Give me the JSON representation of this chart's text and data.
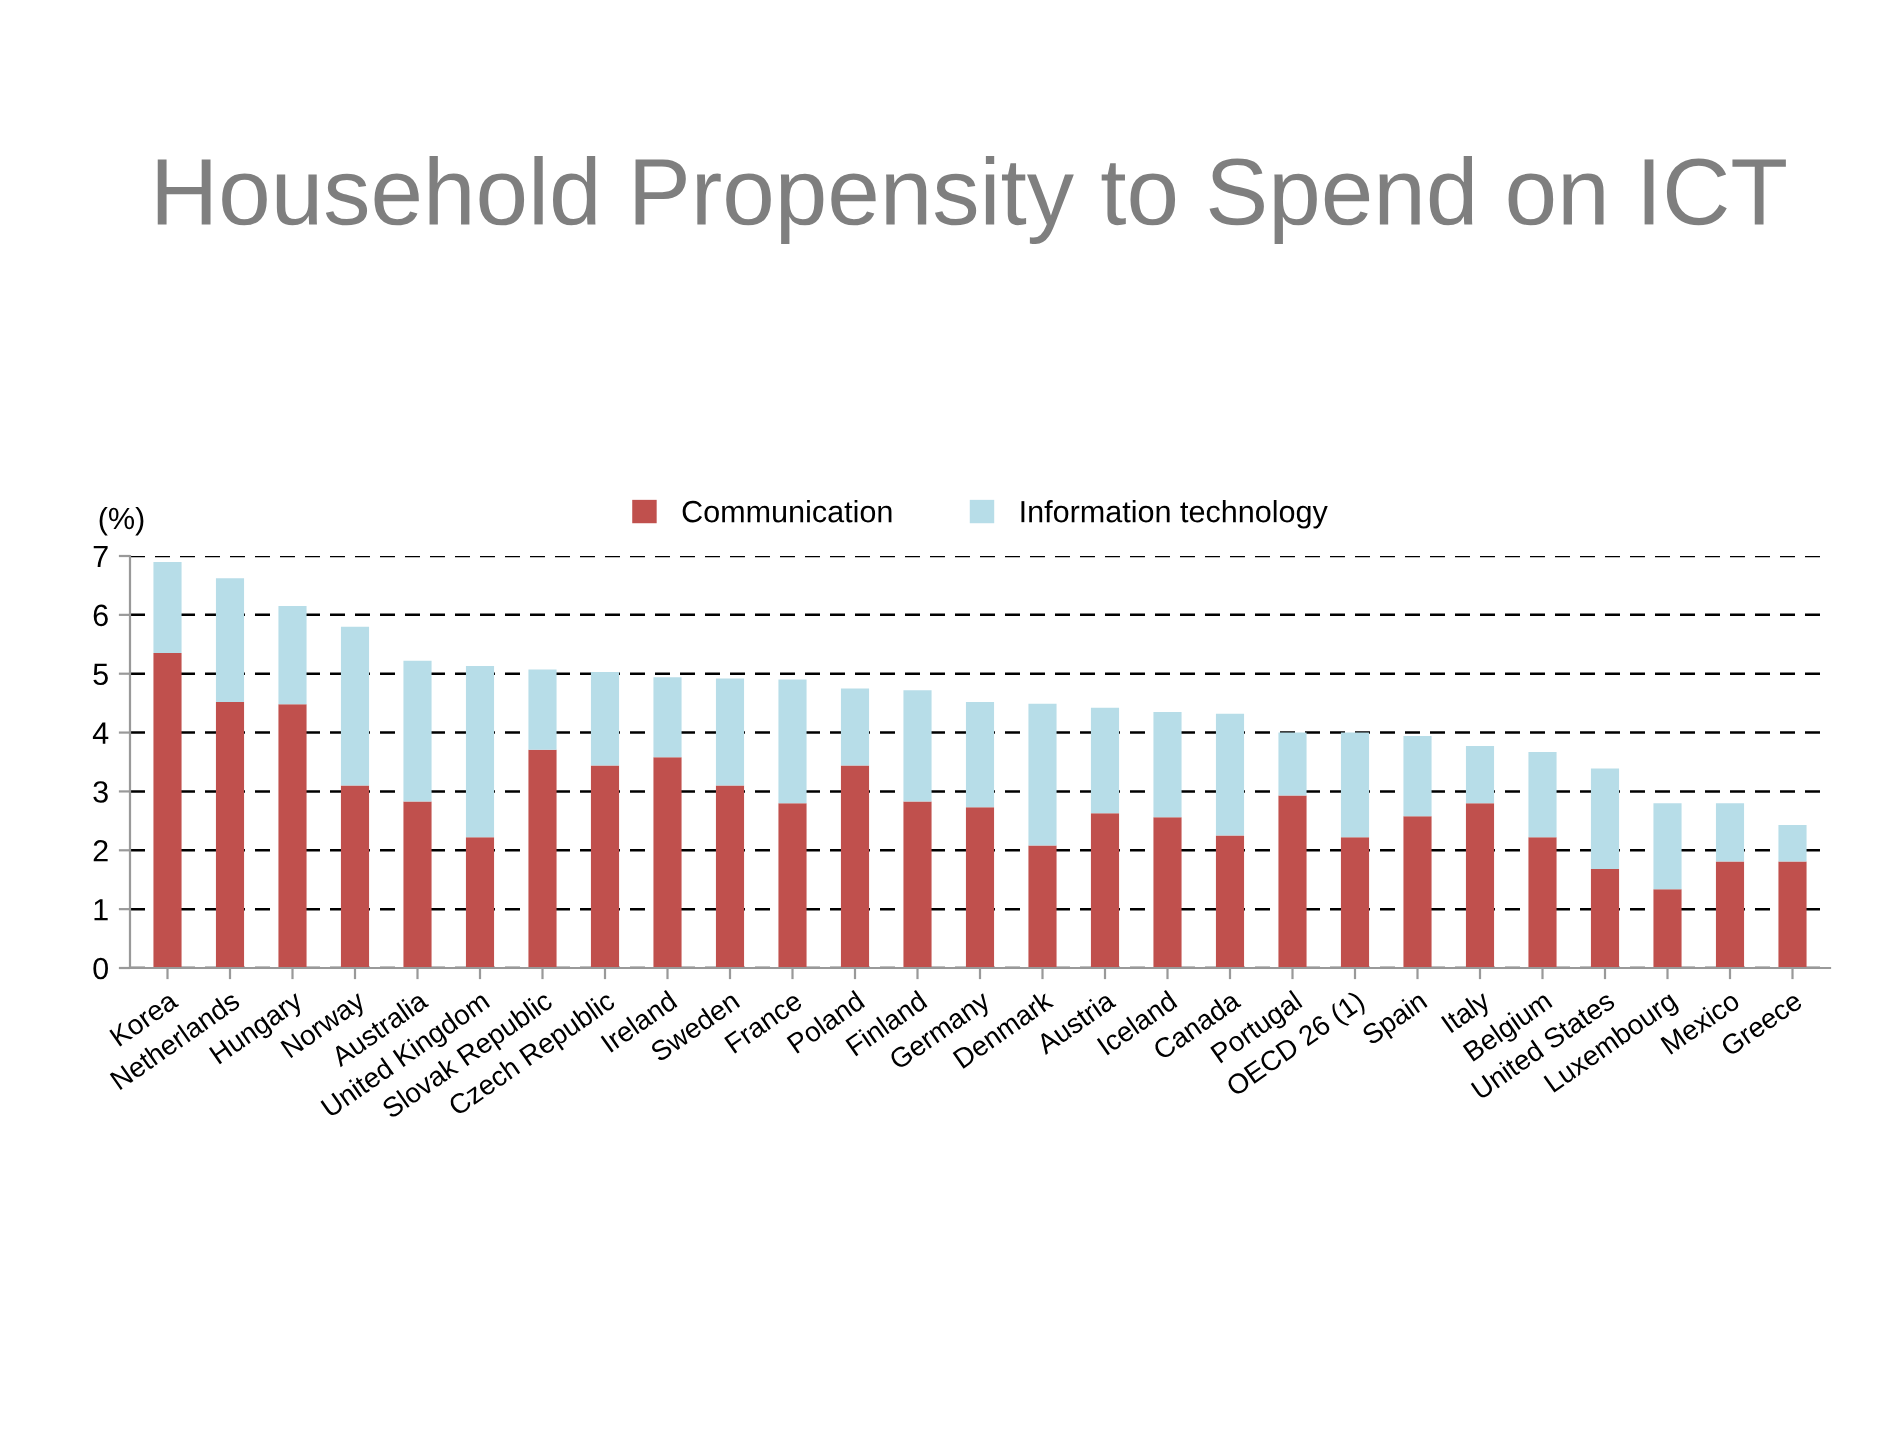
{
  "chart_data": {
    "type": "bar",
    "title": "Household Propensity to Spend on ICT",
    "ylabel": "(%)",
    "categories": [
      "Korea",
      "Netherlands",
      "Hungary",
      "Norway",
      "Australia",
      "United Kingdom",
      "Slovak Republic",
      "Czech Republic",
      "Ireland",
      "Sweden",
      "France",
      "Poland",
      "Finland",
      "Germany",
      "Denmark",
      "Austria",
      "Iceland",
      "Canada",
      "Portugal",
      "OECD 26 (1)",
      "Spain",
      "Italy",
      "Belgium",
      "United States",
      "Luxembourg",
      "Mexico",
      "Greece"
    ],
    "series": [
      {
        "name": "Communication",
        "color": "#c0504d",
        "values": [
          5.35,
          4.52,
          4.48,
          3.1,
          2.83,
          2.22,
          3.71,
          3.44,
          3.58,
          3.1,
          2.8,
          3.44,
          2.83,
          2.73,
          2.08,
          2.63,
          2.56,
          2.25,
          2.93,
          2.22,
          2.58,
          2.8,
          2.22,
          1.68,
          1.34,
          1.81,
          1.81
        ]
      },
      {
        "name": "Information technology",
        "color": "#b7dde8",
        "values": [
          1.55,
          2.1,
          1.67,
          2.7,
          2.39,
          2.91,
          1.36,
          1.59,
          1.36,
          1.82,
          2.1,
          1.31,
          1.89,
          1.79,
          2.41,
          1.79,
          1.79,
          2.07,
          1.07,
          1.78,
          1.36,
          0.97,
          1.45,
          1.71,
          1.46,
          0.99,
          0.62
        ]
      }
    ],
    "stacked": true,
    "ylim": [
      0,
      7
    ],
    "yticks": [
      0,
      1,
      2,
      3,
      4,
      5,
      6,
      7
    ],
    "grid": "y",
    "legend": "top"
  }
}
